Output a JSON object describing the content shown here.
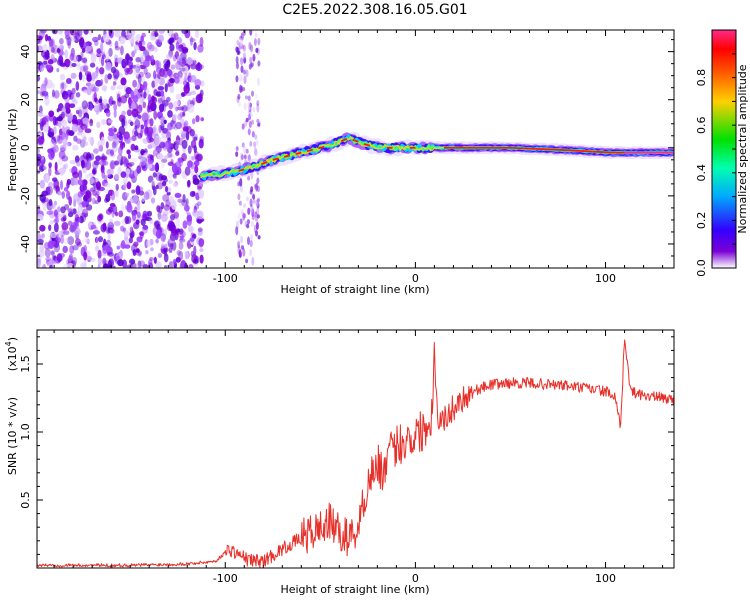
{
  "title": "C2E5.2022.308.16.05.G01",
  "chart_data": [
    {
      "type": "heatmap",
      "xlabel": "Height of straight line (km)",
      "ylabel": "Frequency (Hz)",
      "xlim": [
        -199,
        136
      ],
      "ylim": [
        -50,
        49
      ],
      "xticks": [
        -100,
        0,
        100
      ],
      "yticks": [
        -40,
        -20,
        0,
        20,
        40
      ],
      "ridge": [
        {
          "x": -113,
          "y": -12
        },
        {
          "x": -105,
          "y": -11
        },
        {
          "x": -95,
          "y": -10
        },
        {
          "x": -85,
          "y": -8
        },
        {
          "x": -75,
          "y": -5
        },
        {
          "x": -65,
          "y": -3
        },
        {
          "x": -55,
          "y": -1
        },
        {
          "x": -45,
          "y": 1
        },
        {
          "x": -35,
          "y": 4
        },
        {
          "x": -25,
          "y": 1
        },
        {
          "x": -15,
          "y": 0
        },
        {
          "x": 0,
          "y": 0
        },
        {
          "x": 20,
          "y": 0
        },
        {
          "x": 50,
          "y": 0
        },
        {
          "x": 80,
          "y": -1
        },
        {
          "x": 103,
          "y": -2
        },
        {
          "x": 136,
          "y": -2
        }
      ],
      "colorbar": {
        "label": "Normalized spectral amplitude",
        "range": [
          0,
          1
        ],
        "ticks": [
          0.0,
          0.2,
          0.4,
          0.6,
          0.8
        ]
      }
    },
    {
      "type": "line",
      "xlabel": "Height of straight line (km)",
      "ylabel": "SNR (10 * v/v)",
      "multiplier": "(x10",
      "multiplier_exp": "4",
      "multiplier_close": ")",
      "xlim": [
        -199,
        136
      ],
      "ylim": [
        0,
        1.75
      ],
      "xticks": [
        -100,
        0,
        100
      ],
      "yticks": [
        0.5,
        1.0,
        1.5
      ],
      "series": [
        {
          "name": "SNR",
          "color": "#e8302a",
          "x": [
            -199,
            -150,
            -120,
            -105,
            -98,
            -93,
            -88,
            -80,
            -70,
            -60,
            -52,
            -45,
            -40,
            -35,
            -30,
            -27,
            -24,
            -20,
            -16,
            -12,
            -8,
            -4,
            0,
            4,
            8,
            10,
            12,
            16,
            20,
            25,
            30,
            40,
            50,
            60,
            70,
            80,
            90,
            100,
            105,
            108,
            110,
            113,
            120,
            136
          ],
          "y": [
            0.02,
            0.02,
            0.03,
            0.05,
            0.14,
            0.1,
            0.06,
            0.05,
            0.14,
            0.22,
            0.28,
            0.34,
            0.26,
            0.22,
            0.3,
            0.5,
            0.68,
            0.75,
            0.72,
            0.88,
            0.92,
            0.95,
            0.98,
            1.02,
            1.07,
            1.55,
            1.1,
            1.1,
            1.18,
            1.25,
            1.3,
            1.35,
            1.36,
            1.36,
            1.35,
            1.34,
            1.32,
            1.3,
            1.25,
            1.02,
            1.72,
            1.3,
            1.27,
            1.24
          ]
        }
      ]
    }
  ]
}
